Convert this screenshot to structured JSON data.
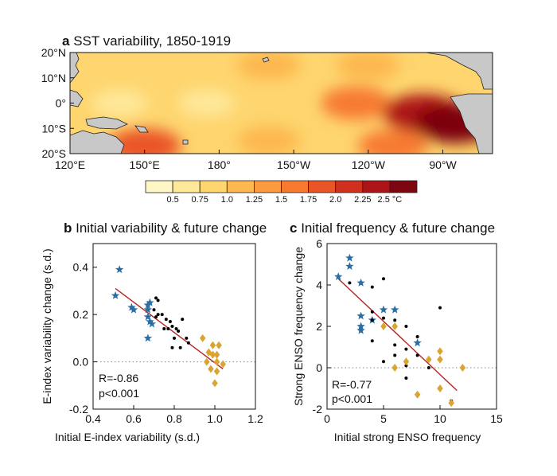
{
  "chart_data": [
    {
      "panel": "a",
      "type": "heatmap",
      "title": "SST variability, 1850-1919",
      "x_ticks": [
        "120°E",
        "150°E",
        "180°",
        "150°W",
        "120°W",
        "90°W"
      ],
      "y_ticks": [
        "20°N",
        "10°N",
        "0°",
        "10°S",
        "20°S"
      ],
      "xlim_deg_east": [
        120,
        290
      ],
      "ylim_deg_north": [
        -20,
        20
      ],
      "colorbar": {
        "levels": [
          "0.5",
          "0.75",
          "1.0",
          "1.25",
          "1.5",
          "1.75",
          "2.0",
          "2.25",
          "2.5 °C"
        ],
        "colors": [
          "#fff6c6",
          "#fee89a",
          "#fed56e",
          "#fdb850",
          "#fc9a3f",
          "#f77a30",
          "#ea5527",
          "#d1301e",
          "#ad1418",
          "#7d0611"
        ]
      },
      "land_color": "#c8c8c8",
      "regions": [
        {
          "lon": 150,
          "lat": 15,
          "level": 2
        },
        {
          "lon": 165,
          "lat": 15,
          "level": 2
        },
        {
          "lon": 200,
          "lat": 15,
          "level": 3
        },
        {
          "lon": 240,
          "lat": 15,
          "level": 3
        },
        {
          "lon": 140,
          "lat": 0,
          "level": 1
        },
        {
          "lon": 175,
          "lat": 0,
          "level": 1
        },
        {
          "lon": 205,
          "lat": 2,
          "level": 2
        },
        {
          "lon": 235,
          "lat": 0,
          "level": 5
        },
        {
          "lon": 262,
          "lat": -4,
          "level": 8
        },
        {
          "lon": 275,
          "lat": -8,
          "level": 9
        },
        {
          "lon": 200,
          "lat": -15,
          "level": 3
        },
        {
          "lon": 250,
          "lat": -17,
          "level": 5
        },
        {
          "lon": 150,
          "lat": -17,
          "level": 6
        }
      ]
    },
    {
      "panel": "b",
      "type": "scatter",
      "title": "Initial variability & future change",
      "xlabel": "Initial E-index variability (s.d.)",
      "ylabel": "E-index variability change (s.d.)",
      "xlim": [
        0.4,
        1.2
      ],
      "ylim": [
        -0.2,
        0.5
      ],
      "xticks": [
        "0.4",
        "0.6",
        "0.8",
        "1.0",
        "1.2"
      ],
      "yticks": [
        "-0.2",
        "0.0",
        "0.2",
        "0.4"
      ],
      "stats": [
        "R=-0.86",
        "p<0.001"
      ],
      "series": [
        {
          "marker": "star",
          "color": "#2a6ea6",
          "points": [
            [
              0.53,
              0.39
            ],
            [
              0.51,
              0.28
            ],
            [
              0.59,
              0.23
            ],
            [
              0.6,
              0.22
            ],
            [
              0.67,
              0.24
            ],
            [
              0.67,
              0.22
            ],
            [
              0.68,
              0.25
            ],
            [
              0.67,
              0.19
            ],
            [
              0.68,
              0.17
            ],
            [
              0.69,
              0.16
            ],
            [
              0.67,
              0.1
            ]
          ]
        },
        {
          "marker": "dot",
          "color": "#000000",
          "points": [
            [
              0.71,
              0.27
            ],
            [
              0.72,
              0.26
            ],
            [
              0.7,
              0.22
            ],
            [
              0.74,
              0.2
            ],
            [
              0.72,
              0.2
            ],
            [
              0.71,
              0.19
            ],
            [
              0.76,
              0.18
            ],
            [
              0.78,
              0.17
            ],
            [
              0.77,
              0.14
            ],
            [
              0.79,
              0.15
            ],
            [
              0.81,
              0.14
            ],
            [
              0.82,
              0.13
            ],
            [
              0.8,
              0.1
            ],
            [
              0.75,
              0.14
            ],
            [
              0.84,
              0.18
            ],
            [
              0.86,
              0.1
            ],
            [
              0.83,
              0.06
            ],
            [
              0.87,
              0.08
            ],
            [
              0.79,
              0.06
            ]
          ]
        },
        {
          "marker": "diamond",
          "color": "#daa432",
          "points": [
            [
              0.94,
              0.1
            ],
            [
              0.97,
              0.04
            ],
            [
              0.99,
              0.07
            ],
            [
              1.02,
              0.07
            ],
            [
              0.99,
              0.03
            ],
            [
              1.01,
              0.03
            ],
            [
              0.96,
              0.0
            ],
            [
              1.01,
              0.0
            ],
            [
              1.04,
              -0.01
            ],
            [
              0.98,
              -0.03
            ],
            [
              1.01,
              -0.04
            ],
            [
              1.0,
              -0.09
            ]
          ]
        }
      ],
      "fit_line": [
        [
          0.51,
          0.31
        ],
        [
          1.04,
          -0.03
        ]
      ]
    },
    {
      "panel": "c",
      "type": "scatter",
      "title": "Initial frequency & future change",
      "xlabel": "Initial strong ENSO frequency",
      "ylabel": "Strong ENSO frequency change",
      "xlim": [
        0,
        15
      ],
      "ylim": [
        -2,
        6
      ],
      "xticks": [
        "0",
        "5",
        "10",
        "15"
      ],
      "yticks": [
        "-2",
        "0",
        "2",
        "4",
        "6"
      ],
      "stats": [
        "R=-0.77",
        "p<0.001"
      ],
      "series": [
        {
          "marker": "star",
          "color": "#2a6ea6",
          "points": [
            [
              2,
              5.3
            ],
            [
              2,
              4.9
            ],
            [
              1,
              4.4
            ],
            [
              3,
              4.1
            ],
            [
              5,
              2.8
            ],
            [
              6,
              2.8
            ],
            [
              3,
              2.5
            ],
            [
              4,
              2.3
            ],
            [
              3,
              2.0
            ],
            [
              3,
              1.8
            ],
            [
              8,
              1.2
            ]
          ]
        },
        {
          "marker": "dot",
          "color": "#000000",
          "points": [
            [
              2,
              4.1
            ],
            [
              5,
              4.3
            ],
            [
              4,
              3.9
            ],
            [
              4,
              2.7
            ],
            [
              5,
              2.4
            ],
            [
              4,
              2.3
            ],
            [
              6,
              2.3
            ],
            [
              5,
              2.0
            ],
            [
              7,
              2.0
            ],
            [
              8,
              1.5
            ],
            [
              4,
              1.3
            ],
            [
              6,
              1.1
            ],
            [
              7,
              0.9
            ],
            [
              8,
              0.6
            ],
            [
              6,
              0.6
            ],
            [
              5,
              0.3
            ],
            [
              7,
              0.1
            ],
            [
              9,
              0.0
            ],
            [
              7,
              -0.5
            ],
            [
              10,
              2.9
            ],
            [
              11,
              -1.6
            ]
          ]
        },
        {
          "marker": "diamond",
          "color": "#daa432",
          "points": [
            [
              5,
              2.0
            ],
            [
              6,
              2.0
            ],
            [
              7,
              0.3
            ],
            [
              10,
              0.8
            ],
            [
              10,
              0.4
            ],
            [
              9,
              0.4
            ],
            [
              12,
              0.0
            ],
            [
              6,
              0.0
            ],
            [
              10,
              -1.0
            ],
            [
              8,
              -1.3
            ],
            [
              11,
              -1.7
            ]
          ]
        }
      ],
      "fit_line": [
        [
          1,
          4.3
        ],
        [
          11.5,
          -1.1
        ]
      ]
    }
  ]
}
